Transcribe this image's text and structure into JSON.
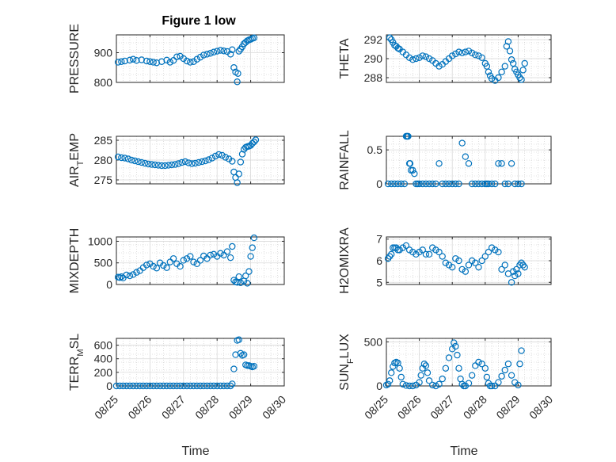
{
  "figure_title": "Figure 1 low",
  "marker_color": "#0072BD",
  "chart_data": [
    {
      "type": "scatter",
      "ylabel": "PRESSURE",
      "ylim": [
        800,
        960
      ],
      "yticks": [
        800,
        900
      ],
      "x": [
        0.05,
        0.15,
        0.25,
        0.4,
        0.5,
        0.6,
        0.75,
        0.9,
        1.0,
        1.1,
        1.2,
        1.35,
        1.5,
        1.6,
        1.7,
        1.8,
        1.9,
        2.0,
        2.1,
        2.2,
        2.3,
        2.4,
        2.5,
        2.6,
        2.7,
        2.8,
        2.9,
        3.0,
        3.1,
        3.2,
        3.3,
        3.4,
        3.45,
        3.5,
        3.55,
        3.6,
        3.62,
        3.65,
        3.7,
        3.75,
        3.8,
        3.85,
        3.9,
        3.95,
        4.0,
        4.05,
        4.1
      ],
      "values": [
        868,
        870,
        872,
        875,
        878,
        874,
        876,
        872,
        870,
        868,
        866,
        870,
        875,
        868,
        874,
        886,
        888,
        880,
        872,
        868,
        870,
        878,
        885,
        892,
        895,
        898,
        902,
        905,
        908,
        906,
        904,
        895,
        910,
        850,
        835,
        802,
        830,
        905,
        912,
        920,
        930,
        935,
        940,
        943,
        945,
        948,
        950
      ]
    },
    {
      "type": "scatter",
      "ylabel": "THETA",
      "ylim": [
        287.5,
        292.5
      ],
      "yticks": [
        288,
        290,
        292
      ],
      "x": [
        0.1,
        0.15,
        0.2,
        0.25,
        0.3,
        0.35,
        0.4,
        0.5,
        0.6,
        0.7,
        0.8,
        0.9,
        1.0,
        1.1,
        1.2,
        1.3,
        1.4,
        1.5,
        1.6,
        1.7,
        1.8,
        1.9,
        2.0,
        2.1,
        2.2,
        2.3,
        2.4,
        2.5,
        2.6,
        2.7,
        2.8,
        2.9,
        3.0,
        3.05,
        3.1,
        3.15,
        3.2,
        3.3,
        3.4,
        3.5,
        3.6,
        3.65,
        3.7,
        3.75,
        3.8,
        3.85,
        3.9,
        3.95,
        4.0,
        4.05,
        4.1,
        4.15,
        4.2
      ],
      "values": [
        292.2,
        292.0,
        291.7,
        291.4,
        291.3,
        291.1,
        291.0,
        290.7,
        290.4,
        290.1,
        289.9,
        290.0,
        290.1,
        290.3,
        290.2,
        290.0,
        289.8,
        289.5,
        289.2,
        289.4,
        289.7,
        290.0,
        290.3,
        290.5,
        290.7,
        290.6,
        290.7,
        290.8,
        290.6,
        290.4,
        290.3,
        290.1,
        289.5,
        289.2,
        288.6,
        288.2,
        287.9,
        287.7,
        288.0,
        288.6,
        289.2,
        291.3,
        291.8,
        290.8,
        289.9,
        289.5,
        288.9,
        288.6,
        288.3,
        288.0,
        287.8,
        288.8,
        289.5
      ]
    },
    {
      "type": "scatter",
      "ylabel": "AIR_TEMP",
      "ylim": [
        274,
        286
      ],
      "yticks": [
        275,
        280,
        285
      ],
      "x": [
        0.05,
        0.15,
        0.25,
        0.35,
        0.45,
        0.55,
        0.65,
        0.75,
        0.85,
        0.95,
        1.05,
        1.15,
        1.25,
        1.35,
        1.45,
        1.55,
        1.65,
        1.75,
        1.85,
        1.95,
        2.05,
        2.15,
        2.25,
        2.35,
        2.45,
        2.55,
        2.65,
        2.75,
        2.85,
        2.95,
        3.05,
        3.15,
        3.25,
        3.35,
        3.45,
        3.5,
        3.55,
        3.6,
        3.65,
        3.7,
        3.75,
        3.8,
        3.85,
        3.9,
        3.95,
        4.0,
        4.05,
        4.1,
        4.15
      ],
      "values": [
        280.8,
        280.6,
        280.5,
        280.3,
        280.0,
        279.8,
        279.6,
        279.4,
        279.2,
        279.0,
        278.9,
        278.8,
        278.7,
        278.6,
        278.6,
        278.7,
        278.8,
        278.9,
        279.1,
        279.4,
        279.6,
        279.3,
        279.1,
        279.2,
        279.4,
        279.6,
        279.8,
        280.1,
        280.5,
        281.0,
        281.4,
        281.2,
        280.7,
        280.3,
        279.7,
        277.0,
        275.6,
        274.3,
        276.5,
        279.5,
        281.5,
        282.7,
        283.2,
        283.4,
        283.5,
        283.7,
        284.2,
        284.6,
        285.1
      ]
    },
    {
      "type": "scatter",
      "ylabel": "RAINFALL",
      "ylim": [
        0,
        0.7
      ],
      "yticks": [
        0,
        0.5
      ],
      "x": [
        0.05,
        0.15,
        0.25,
        0.35,
        0.45,
        0.55,
        0.6,
        0.62,
        0.64,
        0.66,
        0.7,
        0.72,
        0.75,
        0.8,
        0.85,
        0.9,
        0.95,
        1.0,
        1.1,
        1.2,
        1.3,
        1.4,
        1.5,
        1.6,
        1.7,
        1.8,
        1.9,
        2.0,
        2.1,
        2.2,
        2.3,
        2.4,
        2.5,
        2.6,
        2.7,
        2.8,
        2.9,
        3.0,
        3.05,
        3.1,
        3.2,
        3.3,
        3.4,
        3.5,
        3.6,
        3.7,
        3.8,
        3.9,
        4.0,
        4.1
      ],
      "values": [
        0,
        0,
        0,
        0,
        0,
        0,
        0.7,
        0.7,
        0.7,
        0.7,
        0.3,
        0.3,
        0.2,
        0.2,
        0.15,
        0,
        0,
        0,
        0,
        0,
        0,
        0,
        0,
        0.3,
        0,
        0,
        0,
        0,
        0,
        0,
        0.6,
        0.4,
        0.3,
        0,
        0,
        0,
        0,
        0,
        0,
        0,
        0,
        0,
        0.3,
        0.3,
        0,
        0,
        0.3,
        0,
        0,
        0
      ]
    },
    {
      "type": "scatter",
      "ylabel": "MIXDEPTH",
      "ylim": [
        0,
        1100
      ],
      "yticks": [
        0,
        500,
        1000
      ],
      "x": [
        0.05,
        0.1,
        0.15,
        0.2,
        0.3,
        0.4,
        0.5,
        0.6,
        0.7,
        0.8,
        0.9,
        1.0,
        1.1,
        1.2,
        1.3,
        1.4,
        1.5,
        1.6,
        1.7,
        1.8,
        1.9,
        2.0,
        2.1,
        2.2,
        2.3,
        2.4,
        2.5,
        2.6,
        2.7,
        2.8,
        2.9,
        3.0,
        3.1,
        3.2,
        3.3,
        3.4,
        3.45,
        3.5,
        3.55,
        3.6,
        3.65,
        3.7,
        3.8,
        3.85,
        3.9,
        3.95,
        4.0,
        4.05,
        4.1
      ],
      "values": [
        170,
        160,
        180,
        150,
        220,
        200,
        230,
        280,
        320,
        390,
        450,
        480,
        420,
        380,
        500,
        440,
        390,
        520,
        600,
        480,
        420,
        560,
        600,
        650,
        520,
        480,
        560,
        660,
        600,
        680,
        700,
        650,
        720,
        680,
        760,
        620,
        880,
        100,
        60,
        50,
        180,
        40,
        80,
        200,
        30,
        300,
        650,
        850,
        1080
      ]
    },
    {
      "type": "scatter",
      "ylabel": "H2OMIXRA",
      "ylim": [
        4.9,
        7.1
      ],
      "yticks": [
        5,
        6,
        7
      ],
      "x": [
        0.05,
        0.1,
        0.15,
        0.2,
        0.25,
        0.3,
        0.35,
        0.4,
        0.5,
        0.6,
        0.7,
        0.8,
        0.9,
        1.0,
        1.1,
        1.2,
        1.3,
        1.4,
        1.5,
        1.6,
        1.7,
        1.8,
        1.9,
        2.0,
        2.1,
        2.2,
        2.3,
        2.4,
        2.5,
        2.6,
        2.7,
        2.8,
        2.9,
        3.0,
        3.1,
        3.2,
        3.3,
        3.4,
        3.5,
        3.6,
        3.7,
        3.8,
        3.85,
        3.9,
        3.95,
        4.0,
        4.05,
        4.1,
        4.15,
        4.2
      ],
      "values": [
        6.1,
        6.2,
        6.3,
        6.6,
        6.6,
        6.6,
        6.5,
        6.5,
        6.6,
        6.7,
        6.5,
        6.4,
        6.3,
        6.4,
        6.5,
        6.3,
        6.3,
        6.6,
        6.5,
        6.4,
        6.2,
        5.9,
        5.8,
        5.7,
        6.1,
        6.0,
        5.6,
        5.5,
        5.8,
        6.0,
        5.9,
        5.7,
        6.0,
        6.2,
        6.4,
        6.6,
        6.5,
        6.4,
        5.6,
        5.8,
        5.4,
        5.0,
        5.5,
        5.3,
        5.6,
        5.4,
        5.8,
        5.9,
        5.8,
        5.7
      ]
    },
    {
      "type": "scatter",
      "ylabel": "TERR_MSL",
      "ylim": [
        0,
        700
      ],
      "yticks": [
        0,
        200,
        400,
        600
      ],
      "x": [
        0.0,
        0.1,
        0.2,
        0.3,
        0.4,
        0.5,
        0.6,
        0.7,
        0.8,
        0.9,
        1.0,
        1.1,
        1.2,
        1.3,
        1.4,
        1.5,
        1.6,
        1.7,
        1.8,
        1.9,
        2.0,
        2.1,
        2.2,
        2.3,
        2.4,
        2.5,
        2.6,
        2.7,
        2.8,
        2.9,
        3.0,
        3.1,
        3.2,
        3.3,
        3.4,
        3.45,
        3.5,
        3.55,
        3.6,
        3.65,
        3.7,
        3.75,
        3.8,
        3.85,
        3.9,
        3.95,
        4.0,
        4.05,
        4.1
      ],
      "values": [
        0,
        0,
        0,
        0,
        0,
        0,
        0,
        0,
        0,
        0,
        0,
        0,
        0,
        0,
        0,
        0,
        0,
        0,
        0,
        0,
        0,
        0,
        0,
        0,
        0,
        0,
        0,
        0,
        0,
        0,
        0,
        0,
        0,
        0,
        0,
        30,
        250,
        460,
        670,
        680,
        480,
        450,
        460,
        310,
        300,
        300,
        290,
        280,
        290
      ]
    },
    {
      "type": "scatter",
      "ylabel": "SUN_FLUX",
      "ylim": [
        0,
        540
      ],
      "yticks": [
        0,
        500
      ],
      "x": [
        0.0,
        0.05,
        0.1,
        0.15,
        0.2,
        0.25,
        0.3,
        0.35,
        0.4,
        0.45,
        0.5,
        0.6,
        0.7,
        0.8,
        0.9,
        1.0,
        1.05,
        1.1,
        1.15,
        1.2,
        1.25,
        1.3,
        1.4,
        1.5,
        1.6,
        1.7,
        1.8,
        1.9,
        2.0,
        2.05,
        2.1,
        2.15,
        2.2,
        2.25,
        2.3,
        2.35,
        2.4,
        2.5,
        2.6,
        2.7,
        2.8,
        2.9,
        3.0,
        3.05,
        3.1,
        3.15,
        3.2,
        3.3,
        3.4,
        3.5,
        3.6,
        3.7,
        3.8,
        3.9,
        4.0,
        4.05,
        4.1
      ],
      "values": [
        10,
        20,
        60,
        150,
        220,
        260,
        270,
        260,
        200,
        100,
        20,
        5,
        0,
        0,
        10,
        40,
        120,
        200,
        250,
        230,
        150,
        60,
        10,
        0,
        20,
        80,
        200,
        320,
        420,
        490,
        450,
        350,
        200,
        80,
        20,
        0,
        0,
        30,
        120,
        230,
        270,
        250,
        200,
        100,
        30,
        0,
        0,
        0,
        40,
        110,
        180,
        250,
        120,
        40,
        10,
        250,
        400
      ]
    }
  ],
  "x_axis": {
    "label": "Time",
    "ticks": [
      "08/25",
      "08/26",
      "08/27",
      "08/28",
      "08/29",
      "08/30"
    ],
    "range": [
      0,
      5
    ]
  }
}
